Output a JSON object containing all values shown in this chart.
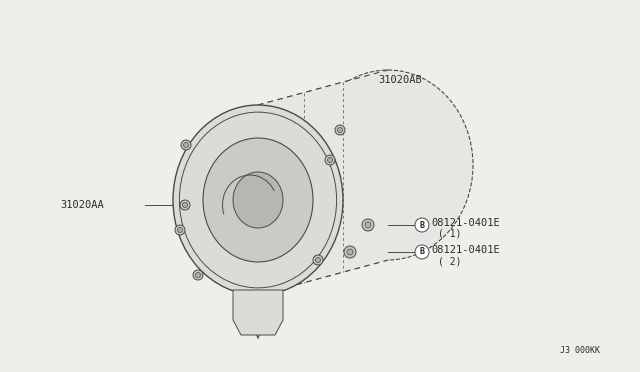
{
  "bg_color": "#f0eeea",
  "diagram_code": "J3 000KK",
  "line_color": "#4a4a4a",
  "text_color": "#2a2a2a",
  "font_size": 7.5,
  "body_color": "#e8e6e2",
  "face_color": "#dddbd7",
  "inner_color": "#cccac6",
  "label_31020AB": "31020AB",
  "label_31020AA": "31020AA",
  "label_bolt1": "08121-0401E",
  "label_bolt1_sub": "( 1)",
  "label_bolt2": "08121-0401E",
  "label_bolt2_sub": "( 2)"
}
